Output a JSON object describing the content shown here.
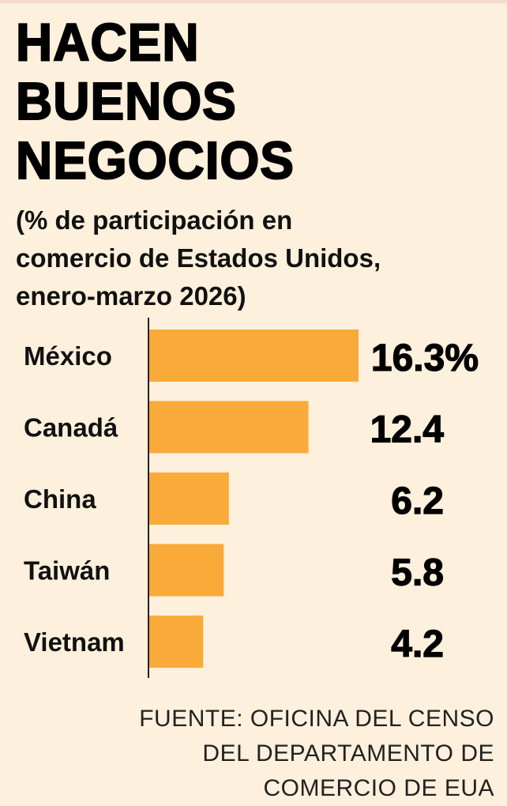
{
  "title_lines": [
    "HACEN",
    "BUENOS",
    "NEGOCIOS"
  ],
  "subtitle_lines": [
    "(% de participación en",
    "comercio de Estados Unidos,",
    "enero-marzo 2026)"
  ],
  "chart_data": {
    "type": "bar",
    "orientation": "horizontal",
    "categories": [
      "México",
      "Canadá",
      "China",
      "Taiwán",
      "Vietnam"
    ],
    "values": [
      16.3,
      12.4,
      6.2,
      5.8,
      4.2
    ],
    "value_labels": [
      "16.3%",
      "12.4",
      "6.2",
      "5.8",
      "4.2"
    ],
    "bar_color": "#f9aa38",
    "axis_color": "#222222",
    "grid": false,
    "legend": "none"
  },
  "source_lines": [
    "FUENTE: OFICINA DEL CENSO",
    "DEL DEPARTAMENTO DE",
    "COMERCIO DE EUA"
  ]
}
